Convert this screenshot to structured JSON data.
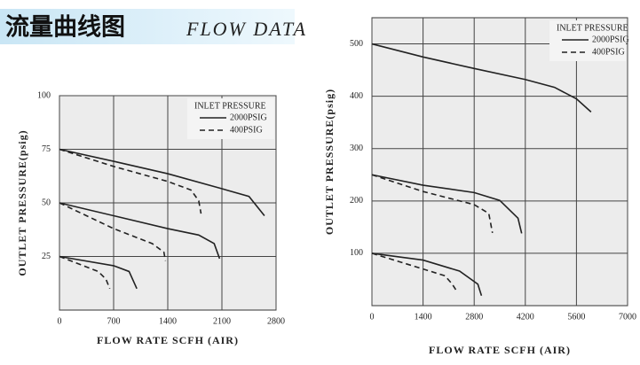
{
  "header": {
    "title": "流量曲线图",
    "subtitle": "FLOW DATA"
  },
  "chart_data": [
    {
      "type": "line",
      "xlabel": "FLOW RATE SCFH (AIR)",
      "ylabel": "OUTLET PRESSURE(psig)",
      "xlim": [
        0,
        2800
      ],
      "ylim": [
        0,
        100
      ],
      "xticks": [
        0,
        700,
        1400,
        2100,
        2800
      ],
      "yticks": [
        25,
        50,
        75,
        100
      ],
      "grid": true,
      "legend": "upper right",
      "legend_title": "INLET PRESSURE",
      "series": [
        {
          "name": "2000PSIG",
          "color": "#222222",
          "dashed": false,
          "lines": [
            {
              "x": [
                0,
                700,
                1400,
                2100,
                2450,
                2650
              ],
              "values": [
                75,
                69.4,
                63.6,
                56.6,
                53,
                44
              ]
            },
            {
              "x": [
                0,
                700,
                1400,
                1800,
                2000,
                2070
              ],
              "values": [
                50,
                44,
                38,
                35,
                31,
                24
              ]
            },
            {
              "x": [
                0,
                700,
                900,
                1000
              ],
              "values": [
                25,
                20.7,
                18,
                10
              ]
            }
          ]
        },
        {
          "name": "400PSIG",
          "color": "#222222",
          "dashed": true,
          "lines": [
            {
              "x": [
                0,
                700,
                1400,
                1700,
                1800,
                1830
              ],
              "values": [
                75,
                67,
                60,
                56,
                51,
                45
              ]
            },
            {
              "x": [
                0,
                700,
                1200,
                1350,
                1370
              ],
              "values": [
                50,
                38,
                31,
                27,
                23
              ]
            },
            {
              "x": [
                0,
                500,
                600,
                650
              ],
              "values": [
                25,
                18,
                14.5,
                10
              ]
            }
          ]
        }
      ]
    },
    {
      "type": "line",
      "xlabel": "FLOW RATE SCFH (AIR)",
      "ylabel": "OUTLET PRESSURE(psig)",
      "xlim": [
        0,
        7000
      ],
      "ylim": [
        0,
        550
      ],
      "xticks": [
        0,
        1400,
        2800,
        4200,
        5600,
        7000
      ],
      "yticks": [
        100,
        200,
        300,
        400,
        500
      ],
      "grid": true,
      "legend": "upper right",
      "legend_title": "INLET PRESSURE",
      "series": [
        {
          "name": "2000PSIG",
          "color": "#222222",
          "dashed": false,
          "lines": [
            {
              "x": [
                0,
                1400,
                2800,
                4200,
                5000,
                5600,
                6000
              ],
              "values": [
                500,
                475,
                453,
                432,
                417,
                395,
                370
              ]
            },
            {
              "x": [
                0,
                1400,
                2800,
                3500,
                4000,
                4100
              ],
              "values": [
                250,
                230,
                216,
                201,
                167,
                138
              ]
            },
            {
              "x": [
                0,
                1400,
                2400,
                2900,
                3000
              ],
              "values": [
                100,
                87,
                66,
                41,
                19
              ]
            }
          ]
        },
        {
          "name": "400PSIG",
          "color": "#222222",
          "dashed": true,
          "lines": [
            {
              "x": [
                0,
                1400,
                2800,
                3200,
                3300
              ],
              "values": [
                250,
                218,
                193,
                176,
                139
              ]
            },
            {
              "x": [
                0,
                1400,
                2000,
                2200,
                2300
              ],
              "values": [
                100,
                70,
                57,
                41,
                30
              ]
            }
          ]
        }
      ]
    }
  ]
}
